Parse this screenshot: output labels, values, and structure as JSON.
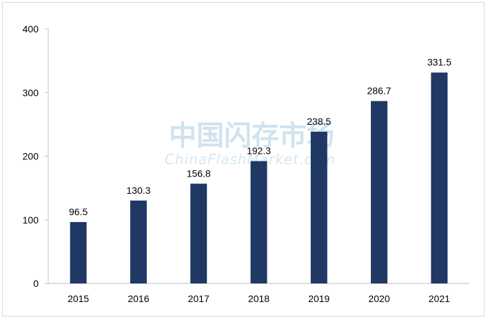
{
  "watermark": {
    "chinese": "中国闪存市场",
    "english": "ChinaFlashMarket.com"
  },
  "colors": {
    "bar": "#1f3864",
    "axis": "#bfbfbf"
  },
  "chart_data": {
    "type": "bar",
    "title": "",
    "xlabel": "",
    "ylabel": "",
    "categories": [
      "2015",
      "2016",
      "2017",
      "2018",
      "2019",
      "2020",
      "2021"
    ],
    "values": [
      96.5,
      130.3,
      156.8,
      192.3,
      238.5,
      286.7,
      331.5
    ],
    "value_labels": [
      "96.5",
      "130.3",
      "156.8",
      "192.3",
      "238.5",
      "286.7",
      "331.5"
    ],
    "ylim": [
      0,
      400
    ],
    "yticks": [
      "0",
      "100",
      "200",
      "300",
      "400"
    ],
    "grid": false,
    "legend": "none"
  }
}
